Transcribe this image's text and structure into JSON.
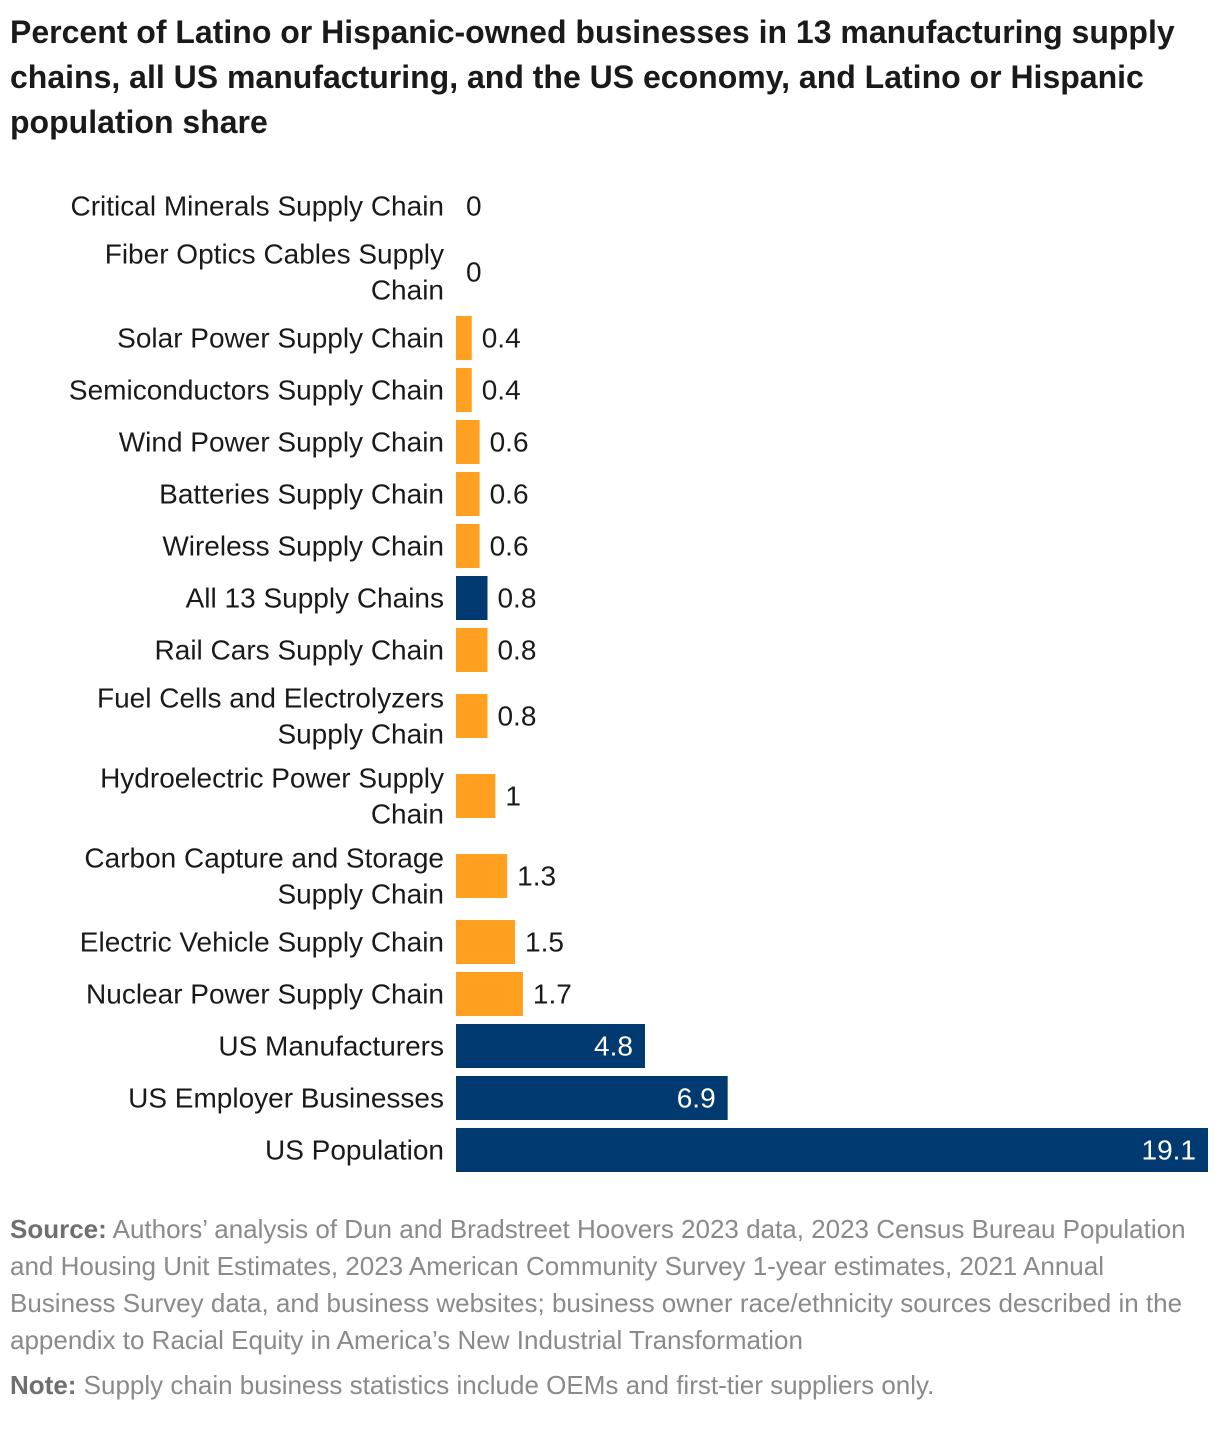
{
  "title": "Percent of Latino or Hispanic-owned businesses in 13 manufacturing supply chains, all US manufacturing, and the US economy, and Latino or Hispanic population share",
  "colors": {
    "supply_chain": "#FFA020",
    "aggregate": "#003A70",
    "label_dark": "#1a1a1a",
    "label_light": "#ffffff"
  },
  "chart_data": {
    "type": "bar",
    "orientation": "horizontal",
    "title": "Percent of Latino or Hispanic-owned businesses in 13 manufacturing supply chains, all US manufacturing, and the US economy, and Latino or Hispanic population share",
    "xlabel": "",
    "ylabel": "",
    "xlim": [
      0,
      19.1
    ],
    "grid": false,
    "categories": [
      "Critical Minerals Supply Chain",
      "Fiber Optics Cables Supply Chain",
      "Solar Power Supply Chain",
      "Semiconductors Supply Chain",
      "Wind Power Supply Chain",
      "Batteries Supply Chain",
      "Wireless Supply Chain",
      "All 13 Supply Chains",
      "Rail Cars Supply Chain",
      "Fuel Cells and Electrolyzers Supply Chain",
      "Hydroelectric Power Supply Chain",
      "Carbon Capture and Storage Supply Chain",
      "Electric Vehicle Supply Chain",
      "Nuclear Power Supply Chain",
      "US Manufacturers",
      "US Employer Businesses",
      "US Population"
    ],
    "category_lines": [
      [
        "Critical Minerals Supply Chain"
      ],
      [
        "Fiber Optics Cables Supply",
        "Chain"
      ],
      [
        "Solar Power Supply Chain"
      ],
      [
        "Semiconductors Supply Chain"
      ],
      [
        "Wind Power Supply Chain"
      ],
      [
        "Batteries Supply Chain"
      ],
      [
        "Wireless Supply Chain"
      ],
      [
        "All 13 Supply Chains"
      ],
      [
        "Rail Cars Supply Chain"
      ],
      [
        "Fuel Cells and Electrolyzers",
        "Supply Chain"
      ],
      [
        "Hydroelectric Power Supply",
        "Chain"
      ],
      [
        "Carbon Capture and Storage",
        "Supply Chain"
      ],
      [
        "Electric Vehicle Supply Chain"
      ],
      [
        "Nuclear Power Supply Chain"
      ],
      [
        "US Manufacturers"
      ],
      [
        "US Employer Businesses"
      ],
      [
        "US Population"
      ]
    ],
    "values": [
      0,
      0,
      0.4,
      0.4,
      0.6,
      0.6,
      0.6,
      0.8,
      0.8,
      0.8,
      1,
      1.3,
      1.5,
      1.7,
      4.8,
      6.9,
      19.1
    ],
    "value_labels": [
      "0",
      "0",
      "0.4",
      "0.4",
      "0.6",
      "0.6",
      "0.6",
      "0.8",
      "0.8",
      "0.8",
      "1",
      "1.3",
      "1.5",
      "1.7",
      "4.8",
      "6.9",
      "19.1"
    ],
    "groups": [
      "supply_chain",
      "supply_chain",
      "supply_chain",
      "supply_chain",
      "supply_chain",
      "supply_chain",
      "supply_chain",
      "aggregate",
      "supply_chain",
      "supply_chain",
      "supply_chain",
      "supply_chain",
      "supply_chain",
      "supply_chain",
      "aggregate",
      "aggregate",
      "aggregate"
    ]
  },
  "footer": {
    "source_label": "Source:",
    "source_text": "Authors’ analysis of Dun and Bradstreet Hoovers 2023 data, 2023 Census Bureau Population and Housing Unit Estimates, 2023 American Community Survey 1-year estimates, 2021 Annual Business Survey data, and business websites; business owner race/ethnicity sources described in the appendix to Racial Equity in America’s New Industrial Transformation",
    "note_label": "Note:",
    "note_text": "Supply chain business statistics include OEMs and first-tier suppliers only."
  }
}
